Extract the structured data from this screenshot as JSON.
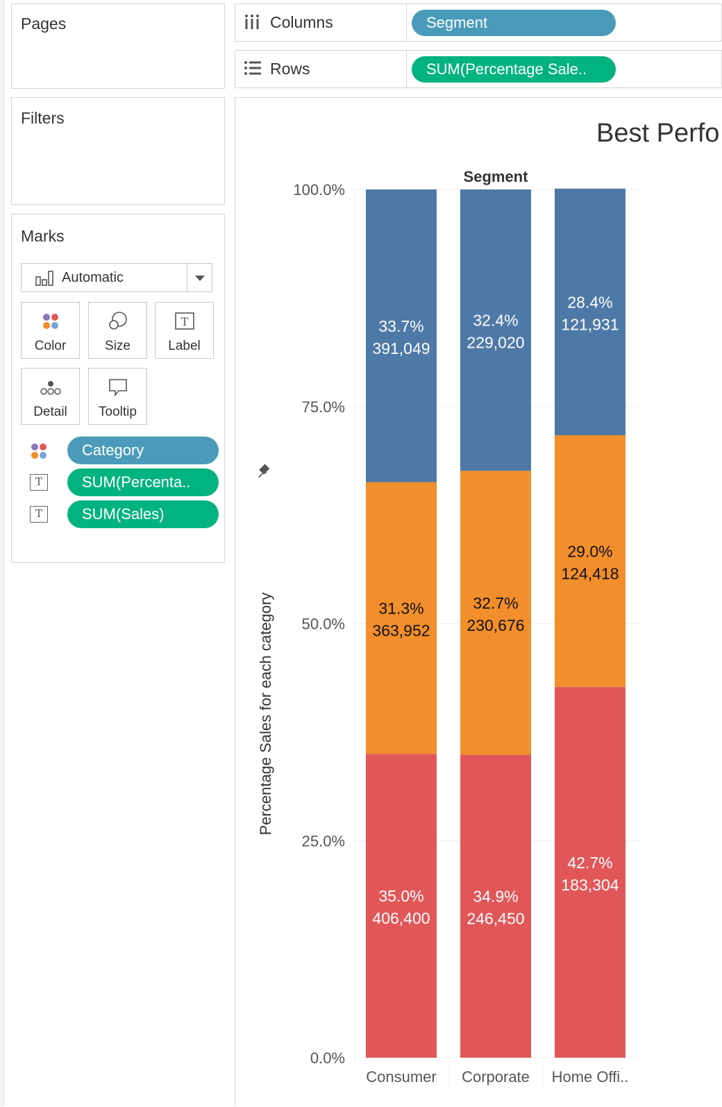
{
  "cards": {
    "pages_title": "Pages",
    "filters_title": "Filters",
    "marks_title": "Marks"
  },
  "marks": {
    "mark_type": "Automatic",
    "buttons": {
      "color": "Color",
      "size": "Size",
      "label": "Label",
      "detail": "Detail",
      "tooltip": "Tooltip"
    },
    "pills": [
      {
        "label": "Category",
        "kind": "dimension",
        "icon": "color-icon"
      },
      {
        "label": "SUM(Percenta..",
        "kind": "measure",
        "icon": "label-icon"
      },
      {
        "label": "SUM(Sales)",
        "kind": "measure",
        "icon": "label-icon"
      }
    ]
  },
  "shelves": {
    "columns_label": "Columns",
    "columns_pill": "Segment",
    "rows_label": "Rows",
    "rows_pill": "SUM(Percentage Sale.."
  },
  "view": {
    "title": "Best Perfo"
  },
  "colors": {
    "dimension_pill": "#4a9bba",
    "measure_pill": "#03b37f",
    "series": [
      "#e15759",
      "#f28e2b",
      "#4e79a7"
    ]
  },
  "chart_data": {
    "type": "bar",
    "stacked": true,
    "title": "",
    "column_header": "Segment",
    "categories": [
      "Consumer",
      "Corporate",
      "Home Offi.."
    ],
    "ylabel": "Percentage Sales for each category",
    "ylim": [
      0,
      100
    ],
    "yticks": [
      "0.0%",
      "25.0%",
      "50.0%",
      "75.0%",
      "100.0%"
    ],
    "series": [
      {
        "values": [
          35.0,
          34.9,
          42.7
        ],
        "sales": [
          "406,400",
          "246,450",
          "183,304"
        ],
        "color": "#e15759"
      },
      {
        "values": [
          31.3,
          32.7,
          29.0
        ],
        "sales": [
          "363,952",
          "230,676",
          "124,418"
        ],
        "color": "#f28e2b"
      },
      {
        "values": [
          33.7,
          32.4,
          28.4
        ],
        "sales": [
          "391,049",
          "229,020",
          "121,931"
        ],
        "color": "#4e79a7"
      }
    ],
    "label_colors": [
      "#ffffff",
      "#111111",
      "#ffffff"
    ],
    "grid": true,
    "legend": "none"
  }
}
